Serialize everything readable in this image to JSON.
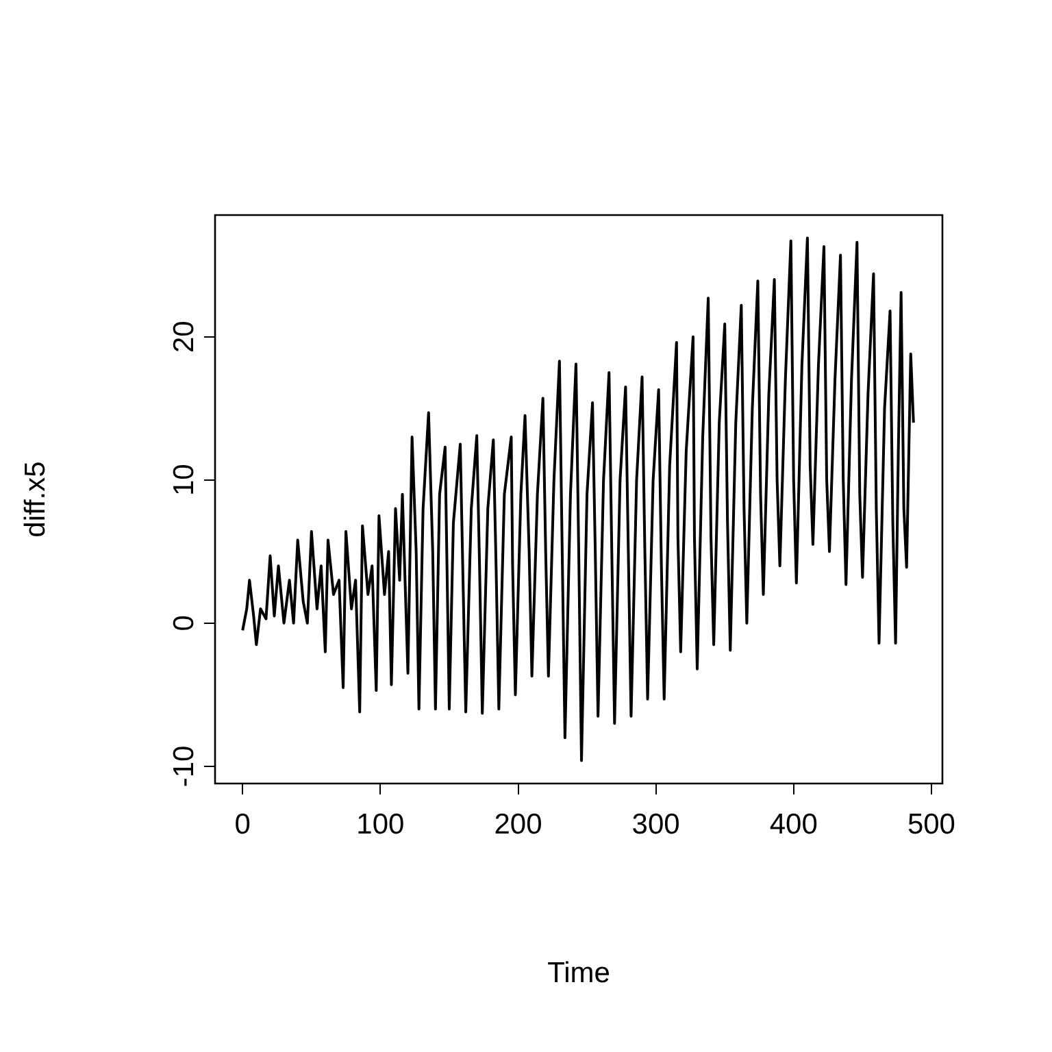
{
  "chart_data": {
    "type": "line",
    "xlabel": "Time",
    "ylabel": "diff.x5",
    "x": [
      0,
      3,
      5,
      8,
      10,
      13,
      17,
      20,
      23,
      26,
      30,
      34,
      37,
      40,
      44,
      47,
      50,
      54,
      57,
      60,
      62,
      66,
      70,
      73,
      75,
      79,
      82,
      85,
      87,
      91,
      94,
      97,
      99,
      103,
      106,
      108,
      111,
      114,
      116,
      120,
      123,
      126,
      128,
      131,
      135,
      138,
      140,
      143,
      147,
      150,
      153,
      158,
      160,
      162,
      166,
      170,
      172,
      174,
      178,
      182,
      184,
      186,
      190,
      195,
      196,
      198,
      202,
      205,
      208,
      210,
      214,
      218,
      220,
      222,
      226,
      230,
      232,
      234,
      238,
      242,
      244,
      246,
      250,
      254,
      256,
      258,
      262,
      266,
      268,
      270,
      274,
      278,
      280,
      282,
      286,
      290,
      292,
      294,
      298,
      302,
      304,
      306,
      310,
      315,
      316,
      318,
      322,
      327,
      328,
      330,
      334,
      338,
      340,
      342,
      346,
      350,
      352,
      354,
      358,
      362,
      364,
      366,
      370,
      374,
      376,
      378,
      382,
      386,
      388,
      390,
      394,
      398,
      400,
      402,
      406,
      410,
      412,
      414,
      418,
      422,
      424,
      426,
      430,
      434,
      436,
      438,
      442,
      446,
      448,
      450,
      454,
      458,
      460,
      462,
      466,
      470,
      472,
      474,
      476,
      478,
      480,
      482,
      485,
      487
    ],
    "series": [
      {
        "color": "#000000",
        "values": [
          -0.5,
          1,
          3,
          0.5,
          -1.5,
          1,
          0.3,
          4.7,
          0.5,
          4,
          0,
          3,
          0,
          5.8,
          1.5,
          0,
          6.4,
          1,
          4,
          -2,
          5.8,
          2,
          3,
          -4.5,
          6.4,
          1,
          3,
          -6.2,
          6.8,
          2,
          4,
          -4.7,
          7.5,
          2,
          5,
          -4.3,
          8,
          3,
          9,
          -3.5,
          13,
          5,
          -6,
          8,
          14.7,
          5,
          -6,
          9,
          12.3,
          -6,
          7,
          12.5,
          3,
          -6.2,
          8,
          13.1,
          4,
          -6.3,
          8,
          12.8,
          4,
          -6,
          9,
          13,
          4,
          -5,
          9,
          14.5,
          5,
          -3.7,
          9,
          15.7,
          5,
          -3.7,
          10,
          18.3,
          5,
          -8,
          9,
          18.1,
          5,
          -9.6,
          9,
          15.4,
          5,
          -6.5,
          10,
          17.5,
          5,
          -7,
          10,
          16.5,
          5,
          -6.5,
          10,
          17.2,
          5,
          -5.3,
          10,
          16.3,
          4,
          -5.3,
          11,
          19.6,
          6,
          -2,
          12,
          20,
          6,
          -3.2,
          13,
          22.7,
          6,
          -1.5,
          14,
          20.9,
          7,
          -1.9,
          14,
          22.2,
          8,
          0,
          15,
          23.9,
          9,
          2,
          16,
          24,
          10,
          4,
          17,
          26.7,
          10,
          2.8,
          18,
          26.9,
          11,
          5.5,
          18,
          26.3,
          10,
          5,
          17,
          25.7,
          10,
          2.7,
          17,
          26.6,
          9,
          3.2,
          16,
          24.4,
          8,
          -1.4,
          15,
          21.8,
          7,
          -1.4,
          12,
          23.1,
          8,
          3.9,
          18.8,
          14
        ]
      }
    ],
    "xlim": [
      -20,
      508
    ],
    "ylim": [
      -11.2,
      28.5
    ],
    "xticks": [
      0,
      100,
      200,
      300,
      400,
      500
    ],
    "yticks": [
      -10,
      0,
      10,
      20
    ],
    "line_style": "solid"
  }
}
